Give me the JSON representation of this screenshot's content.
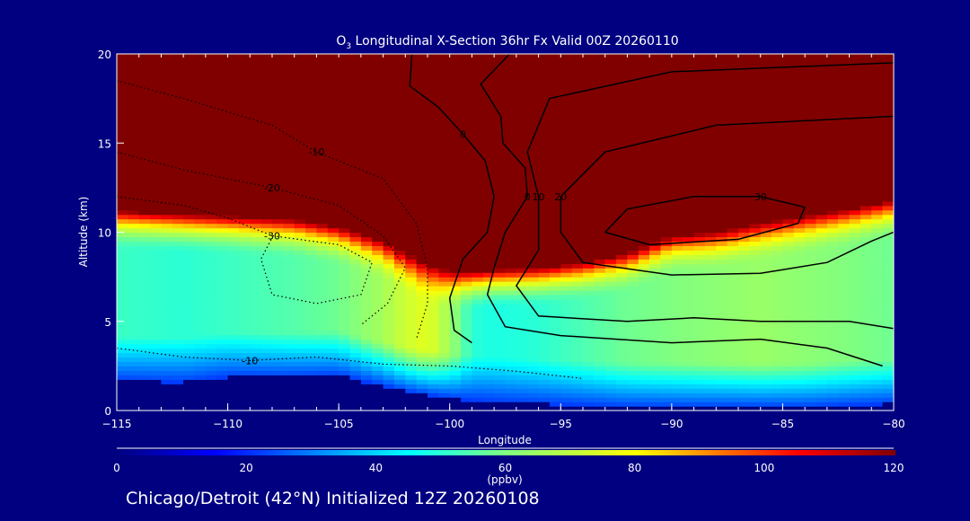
{
  "chart_data": {
    "type": "heatmap",
    "title_prefix": "O",
    "title_subscript": "3",
    "title": " Longitudinal X-Section 36hr  Fx Valid 00Z 20260110",
    "xlabel": "Longitude",
    "ylabel": "Altitude (km)",
    "xlim": [
      -115,
      -80
    ],
    "ylim": [
      0,
      20
    ],
    "xticks": [
      -115,
      -110,
      -105,
      -100,
      -95,
      -90,
      -85,
      -80
    ],
    "xtick_labels": [
      "−115",
      "−110",
      "−105",
      "−100",
      "−95",
      "−90",
      "−85",
      "−80"
    ],
    "yticks": [
      0,
      5,
      10,
      15,
      20
    ],
    "ytick_labels": [
      "0",
      "5",
      "10",
      "15",
      "20"
    ],
    "colorbar": {
      "min": 0,
      "max": 120,
      "ticks": [
        "0",
        "20",
        "40",
        "60",
        "80",
        "100",
        "120"
      ],
      "unit": "(ppbv)",
      "stops": [
        [
          0,
          "#000080"
        ],
        [
          15,
          "#0000ff"
        ],
        [
          30,
          "#0080ff"
        ],
        [
          45,
          "#00ffff"
        ],
        [
          60,
          "#80ff80"
        ],
        [
          80,
          "#ffff00"
        ],
        [
          92,
          "#ff8000"
        ],
        [
          105,
          "#ff0000"
        ],
        [
          120,
          "#800000"
        ]
      ]
    },
    "field": {
      "longitudes": [
        -115,
        -112,
        -110,
        -107,
        -105,
        -103,
        -102,
        -101,
        -100,
        -99,
        -98,
        -96,
        -94,
        -92,
        -90,
        -88,
        -86,
        -84,
        -82,
        -80
      ],
      "tropopause_km": [
        11.2,
        11.0,
        10.9,
        10.7,
        10.3,
        9.5,
        8.8,
        8.2,
        7.8,
        7.8,
        7.9,
        8.0,
        8.3,
        8.8,
        9.8,
        10.0,
        10.5,
        10.9,
        11.3,
        11.8
      ],
      "mid_ppbv": [
        52,
        50,
        52,
        55,
        58,
        66,
        72,
        76,
        65,
        50,
        48,
        50,
        54,
        58,
        60,
        62,
        64,
        62,
        60,
        58
      ],
      "terrain_km": [
        1.7,
        1.6,
        1.9,
        1.9,
        2.0,
        1.4,
        1.1,
        0.9,
        0.7,
        0.6,
        0.5,
        0.4,
        0.3,
        0.2,
        0.2,
        0.2,
        0.2,
        0.2,
        0.3,
        0.4
      ]
    },
    "contours": [
      {
        "label": "0",
        "style": "solid",
        "points": [
          [
            -101.7,
            20
          ],
          [
            -101.8,
            18.2
          ],
          [
            -100.5,
            17
          ],
          [
            -99.4,
            15.5
          ],
          [
            -98.4,
            14
          ],
          [
            -98,
            12
          ],
          [
            -98.3,
            10
          ],
          [
            -99.4,
            8.5
          ],
          [
            -100,
            6.3
          ],
          [
            -99.8,
            4.5
          ],
          [
            -99,
            3.8
          ]
        ]
      },
      {
        "label": "0",
        "style": "solid",
        "points": [
          [
            -97.3,
            20
          ],
          [
            -98.6,
            18.3
          ],
          [
            -97.7,
            16.5
          ],
          [
            -97.6,
            15
          ],
          [
            -96.6,
            13.6
          ],
          [
            -96.5,
            12
          ],
          [
            -97.5,
            10
          ],
          [
            -98,
            8
          ],
          [
            -98.3,
            6.5
          ],
          [
            -97.5,
            4.7
          ],
          [
            -95,
            4.2
          ],
          [
            -90,
            3.8
          ],
          [
            -86,
            4
          ],
          [
            -83,
            3.5
          ],
          [
            -80.5,
            2.5
          ]
        ]
      },
      {
        "label": "10",
        "style": "solid",
        "points": [
          [
            -80,
            19.5
          ],
          [
            -90,
            19
          ],
          [
            -95.5,
            17.5
          ],
          [
            -96.5,
            14.5
          ],
          [
            -96,
            12
          ],
          [
            -96,
            9
          ],
          [
            -97,
            7
          ],
          [
            -96,
            5.3
          ],
          [
            -92,
            5
          ],
          [
            -89,
            5.2
          ],
          [
            -86,
            5
          ],
          [
            -82,
            5
          ],
          [
            -80,
            4.6
          ]
        ]
      },
      {
        "label": "20",
        "style": "solid",
        "points": [
          [
            -80,
            16.5
          ],
          [
            -88,
            16
          ],
          [
            -93,
            14.5
          ],
          [
            -95,
            12
          ],
          [
            -95,
            10
          ],
          [
            -94,
            8.3
          ],
          [
            -90,
            7.6
          ],
          [
            -86,
            7.7
          ],
          [
            -83,
            8.3
          ],
          [
            -81,
            9.5
          ],
          [
            -80,
            10
          ]
        ]
      },
      {
        "label": "30",
        "style": "solid",
        "points": [
          [
            -93,
            10
          ],
          [
            -92,
            11.3
          ],
          [
            -89,
            12
          ],
          [
            -86,
            12
          ],
          [
            -84,
            11.4
          ],
          [
            -84.3,
            10.5
          ],
          [
            -87,
            9.6
          ],
          [
            -91,
            9.3
          ],
          [
            -93,
            10
          ]
        ]
      },
      {
        "label": "-10",
        "style": "dotted",
        "points": [
          [
            -115,
            18.5
          ],
          [
            -112,
            17.5
          ],
          [
            -108,
            16
          ],
          [
            -106,
            14.5
          ],
          [
            -103,
            13
          ],
          [
            -101.5,
            10.5
          ],
          [
            -101,
            8
          ],
          [
            -101,
            6
          ],
          [
            -101.5,
            4
          ]
        ]
      },
      {
        "label": "-20",
        "style": "dotted",
        "points": [
          [
            -115,
            14.5
          ],
          [
            -112,
            13.5
          ],
          [
            -108,
            12.5
          ],
          [
            -105,
            11.5
          ],
          [
            -103,
            9.8
          ],
          [
            -102,
            8
          ],
          [
            -102.8,
            6
          ],
          [
            -104,
            4.8
          ]
        ]
      },
      {
        "label": "-30",
        "style": "dotted",
        "points": [
          [
            -115,
            12
          ],
          [
            -112,
            11.5
          ],
          [
            -110,
            10.8
          ],
          [
            -108,
            9.8
          ],
          [
            -105,
            9.3
          ],
          [
            -103.5,
            8.3
          ],
          [
            -104,
            6.5
          ],
          [
            -106,
            6
          ],
          [
            -108,
            6.5
          ],
          [
            -108.5,
            8.5
          ],
          [
            -108,
            9.7
          ]
        ]
      },
      {
        "label": "-10",
        "style": "dotted",
        "points": [
          [
            -115,
            3.5
          ],
          [
            -112,
            3
          ],
          [
            -109,
            2.8
          ],
          [
            -106,
            3
          ],
          [
            -103,
            2.6
          ],
          [
            -100,
            2.5
          ],
          [
            -97,
            2.2
          ],
          [
            -94,
            1.8
          ]
        ]
      }
    ]
  },
  "footer": {
    "location_text": "Chicago/Detroit (42°N) Initialized 12Z 20260108"
  }
}
